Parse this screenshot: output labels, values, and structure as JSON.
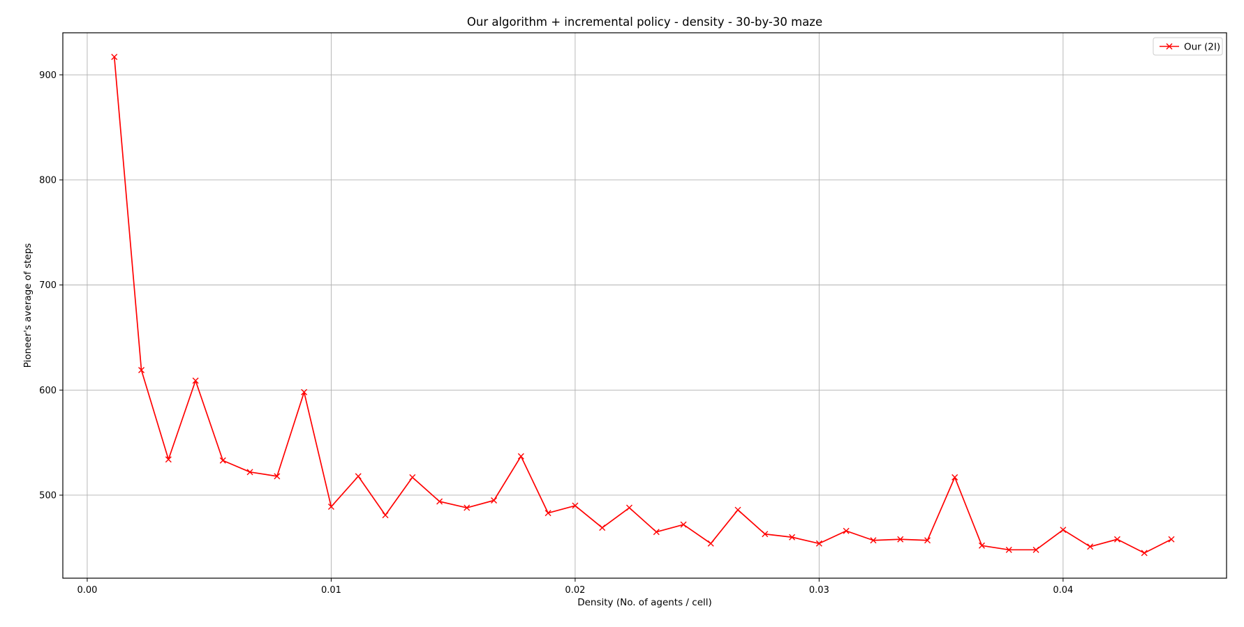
{
  "chart_data": {
    "type": "line",
    "title": "Our algorithm + incremental policy - density - 30-by-30 maze",
    "xlabel": "Density (No. of agents / cell)",
    "ylabel": "Pioneer's average of steps",
    "xlim": [
      -0.001,
      0.0467
    ],
    "ylim": [
      421,
      940
    ],
    "xticks": [
      0.0,
      0.01,
      0.02,
      0.03,
      0.04
    ],
    "xtick_labels": [
      "0.00",
      "0.01",
      "0.02",
      "0.03",
      "0.04"
    ],
    "yticks": [
      500,
      600,
      700,
      800,
      900
    ],
    "ytick_labels": [
      "500",
      "600",
      "700",
      "800",
      "900"
    ],
    "grid": true,
    "legend_position": "top-right",
    "series": [
      {
        "name": "Our (2I)",
        "color": "#ff0000",
        "marker": "x",
        "x": [
          0.00111,
          0.00222,
          0.00333,
          0.00444,
          0.00556,
          0.00667,
          0.00778,
          0.00889,
          0.01,
          0.01111,
          0.01222,
          0.01333,
          0.01444,
          0.01556,
          0.01667,
          0.01778,
          0.01889,
          0.02,
          0.02111,
          0.02222,
          0.02333,
          0.02444,
          0.02556,
          0.02667,
          0.02778,
          0.02889,
          0.03,
          0.03111,
          0.03222,
          0.03333,
          0.03444,
          0.03556,
          0.03667,
          0.03778,
          0.03889,
          0.04,
          0.04111,
          0.04222,
          0.04333,
          0.04444
        ],
        "y": [
          917,
          619,
          534,
          609,
          533,
          522,
          518,
          598,
          489,
          518,
          481,
          517,
          494,
          488,
          495,
          537,
          483,
          490,
          469,
          488,
          465,
          472,
          454,
          486,
          463,
          460,
          454,
          466,
          457,
          458,
          457,
          517,
          452,
          448,
          448,
          467,
          451,
          458,
          445,
          458
        ]
      }
    ]
  }
}
